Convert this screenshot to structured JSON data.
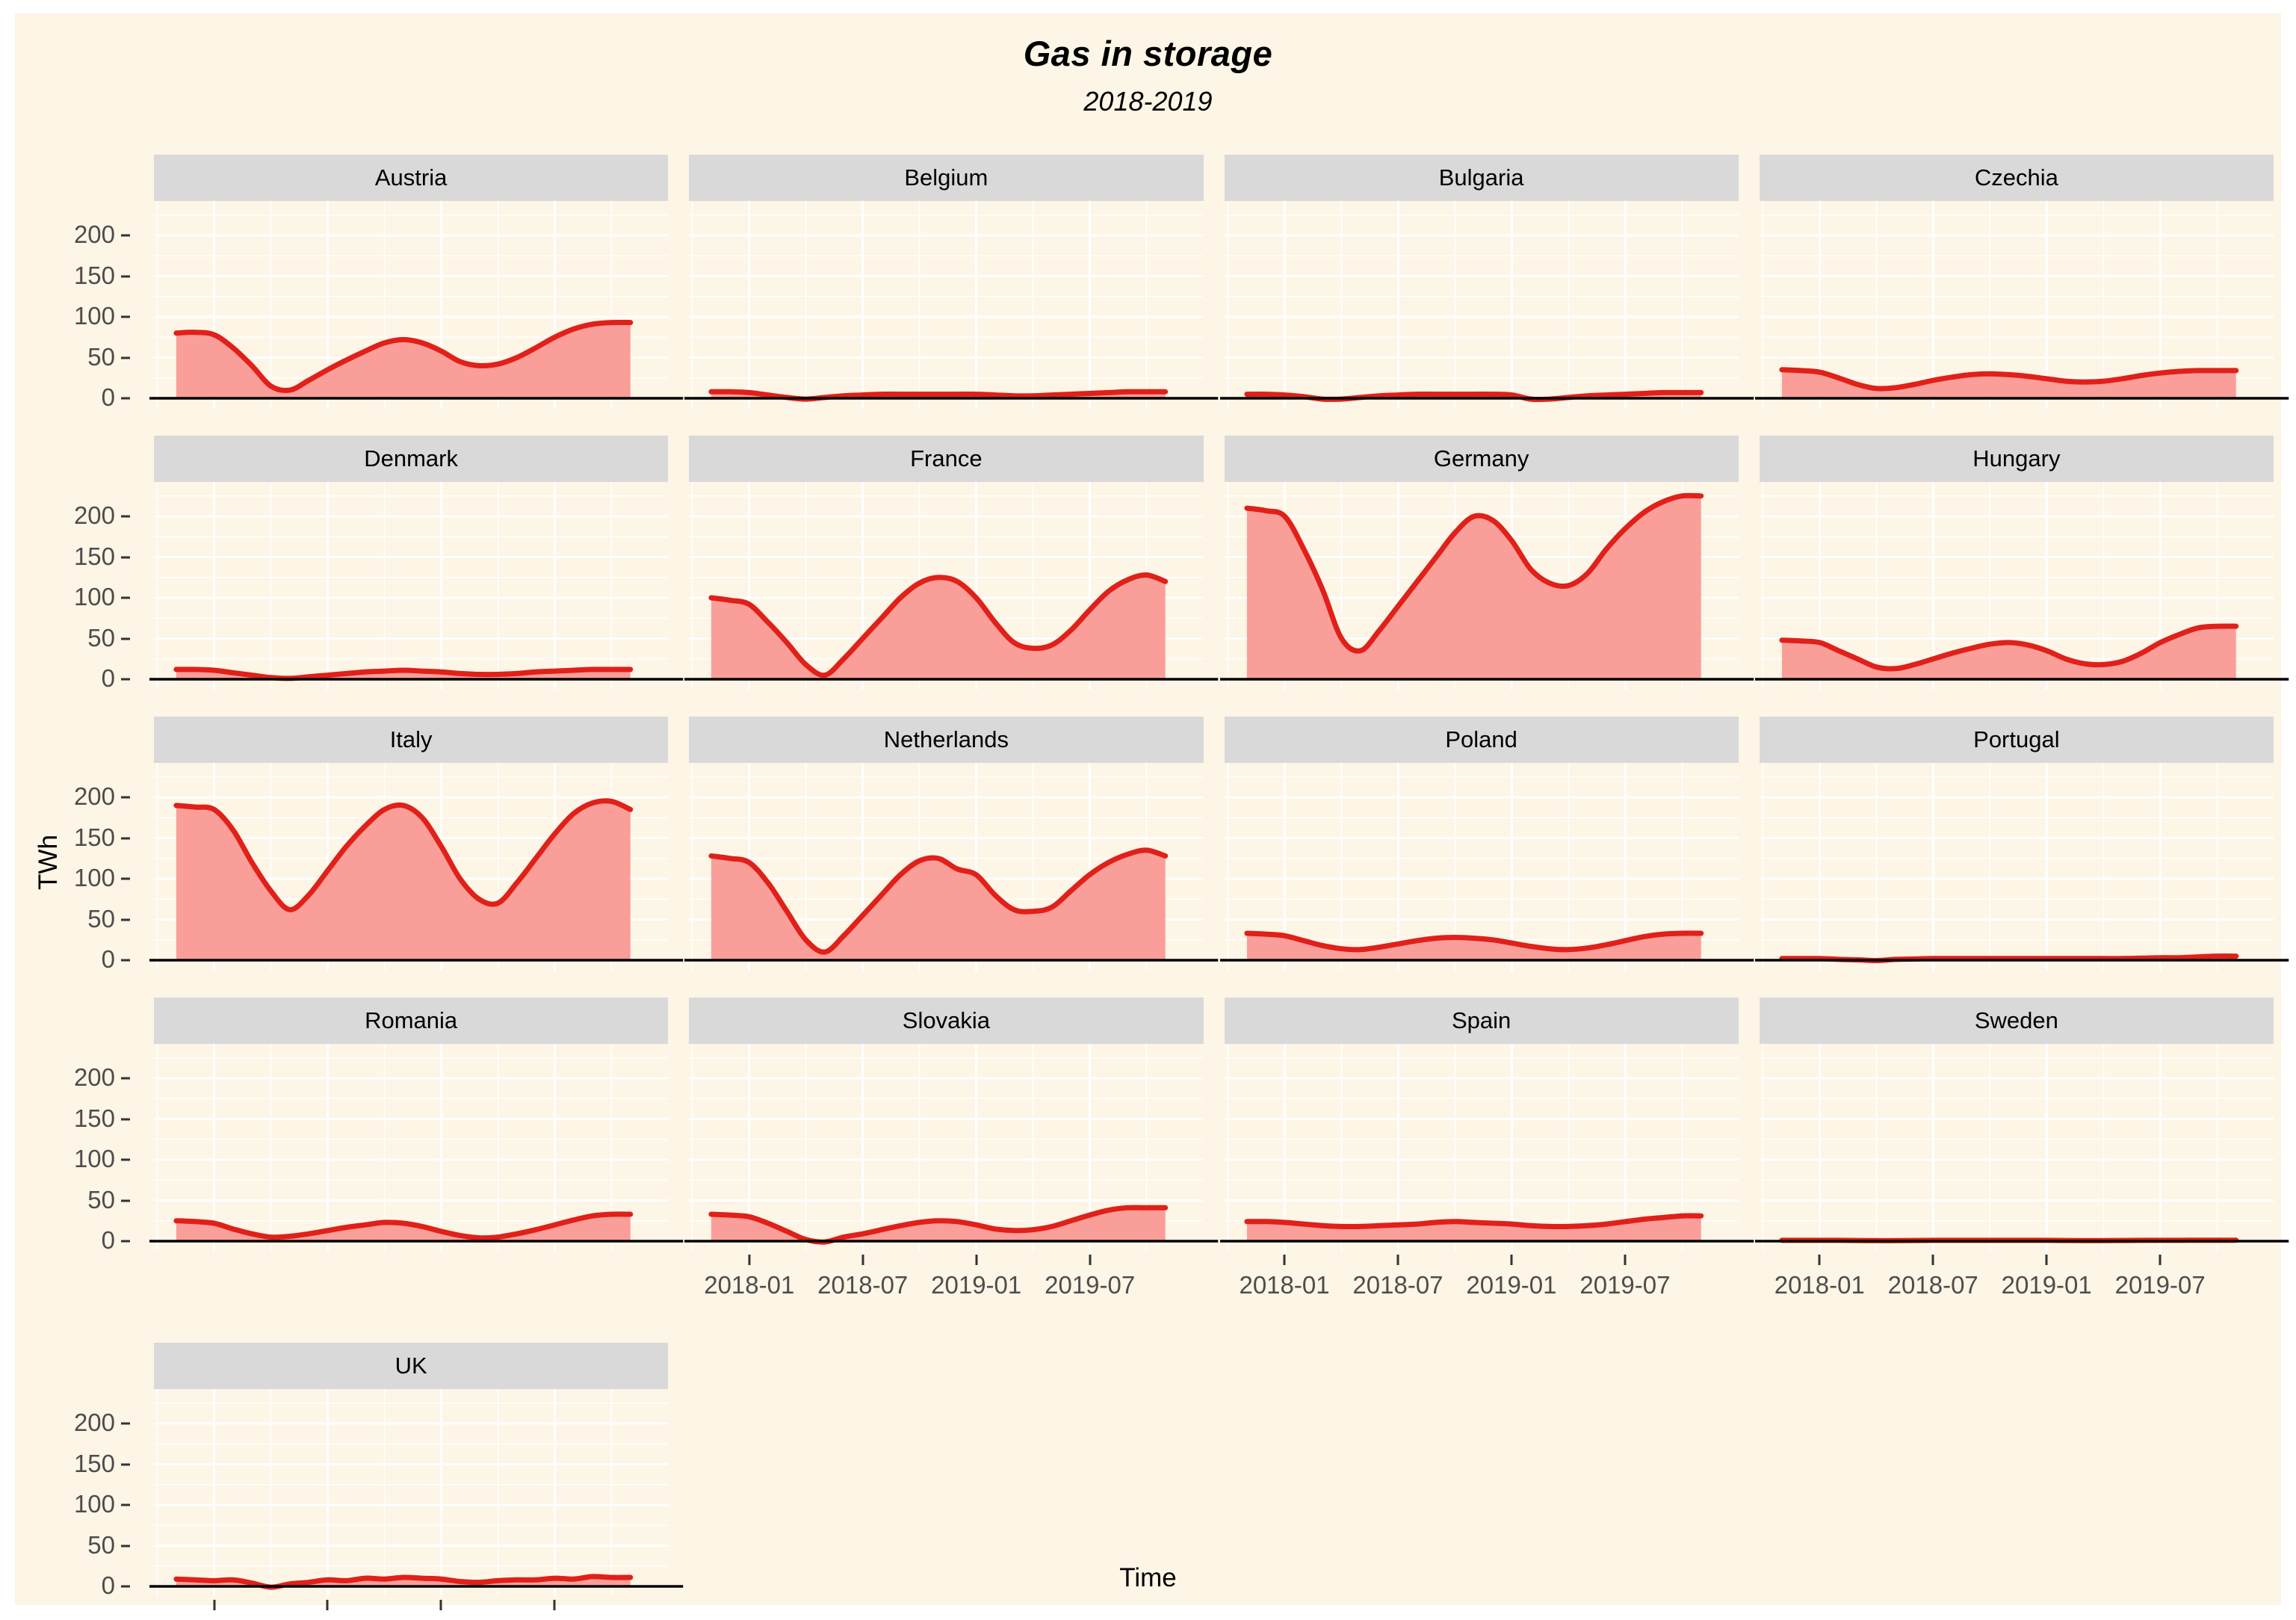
{
  "figure": {
    "title": "Gas in storage",
    "subtitle": "2018-2019",
    "x_axis_label": "Time",
    "y_axis_label": "TWh"
  },
  "colors": {
    "outer_background": "#FFFFFF",
    "plot_background": "#FDF5E6",
    "panel_background": "#FDF5E6",
    "strip_background": "#D9D9D9",
    "strip_text": "#000000",
    "grid": "#FFFFFF",
    "line": "#E02019",
    "area_fill": "#FA9E99",
    "axis_text": "#4D4D4D",
    "axis_line": "#000000",
    "tick_mark": "#333333"
  },
  "layout": {
    "columns": 4,
    "rows": [
      [
        "Austria",
        "Belgium",
        "Bulgaria",
        "Czechia"
      ],
      [
        "Denmark",
        "France",
        "Germany",
        "Hungary"
      ],
      [
        "Italy",
        "Netherlands",
        "Poland",
        "Portugal"
      ],
      [
        "Romania",
        "Slovakia",
        "Spain",
        "Sweden"
      ],
      [
        "UK",
        null,
        null,
        null
      ]
    ],
    "x_axis_under": [
      [
        3,
        1
      ],
      [
        3,
        2
      ],
      [
        3,
        3
      ],
      [
        4,
        0
      ]
    ],
    "grid_on": true,
    "legend": "none"
  },
  "chart_data": {
    "type": "area",
    "title": "Gas in storage",
    "subtitle": "2018-2019",
    "xlabel": "Time",
    "ylabel": "TWh",
    "ylim": [
      0,
      242
    ],
    "y_ticks": [
      0,
      50,
      100,
      150,
      200
    ],
    "y_minor_gridlines": [
      25,
      75,
      125,
      175,
      225
    ],
    "x_tick_labels": [
      "2018-01",
      "2018-07",
      "2019-01",
      "2019-07"
    ],
    "x_tick_month_index": [
      2,
      8,
      14,
      20
    ],
    "x_minor_month_index": [
      -1,
      5,
      11,
      17,
      23
    ],
    "x": [
      "2017-11",
      "2017-12",
      "2018-01",
      "2018-02",
      "2018-03",
      "2018-04",
      "2018-05",
      "2018-06",
      "2018-07",
      "2018-08",
      "2018-09",
      "2018-10",
      "2018-11",
      "2018-12",
      "2019-01",
      "2019-02",
      "2019-03",
      "2019-04",
      "2019-05",
      "2019-06",
      "2019-07",
      "2019-08",
      "2019-09",
      "2019-10",
      "2019-11"
    ],
    "series": [
      {
        "name": "Austria",
        "values": [
          80,
          81,
          78,
          62,
          40,
          15,
          10,
          22,
          35,
          47,
          58,
          68,
          72,
          68,
          58,
          45,
          40,
          42,
          50,
          62,
          75,
          85,
          91,
          93,
          93
        ]
      },
      {
        "name": "Belgium",
        "values": [
          8,
          8,
          7,
          4,
          1,
          -1,
          1,
          3,
          4,
          5,
          5,
          5,
          5,
          5,
          5,
          4,
          3,
          3,
          4,
          5,
          6,
          7,
          8,
          8,
          8
        ]
      },
      {
        "name": "Bulgaria",
        "values": [
          5,
          5,
          4,
          2,
          -1,
          -1,
          1,
          3,
          4,
          5,
          5,
          5,
          5,
          5,
          4,
          -1,
          -1,
          1,
          3,
          4,
          5,
          6,
          7,
          7,
          7
        ]
      },
      {
        "name": "Czechia",
        "values": [
          35,
          34,
          32,
          25,
          17,
          12,
          13,
          17,
          22,
          26,
          29,
          30,
          29,
          27,
          24,
          21,
          20,
          21,
          24,
          28,
          31,
          33,
          34,
          34,
          34
        ]
      },
      {
        "name": "Denmark",
        "values": [
          12,
          12,
          11,
          8,
          5,
          2,
          1,
          3,
          5,
          7,
          9,
          10,
          11,
          10,
          9,
          7,
          6,
          6,
          7,
          9,
          10,
          11,
          12,
          12,
          12
        ]
      },
      {
        "name": "France",
        "values": [
          100,
          97,
          92,
          70,
          45,
          18,
          5,
          25,
          50,
          75,
          100,
          118,
          125,
          120,
          100,
          70,
          45,
          38,
          42,
          60,
          85,
          108,
          122,
          128,
          120
        ]
      },
      {
        "name": "Germany",
        "values": [
          210,
          207,
          200,
          160,
          110,
          50,
          35,
          60,
          90,
          120,
          150,
          180,
          200,
          195,
          170,
          135,
          118,
          115,
          130,
          160,
          185,
          205,
          218,
          225,
          225
        ]
      },
      {
        "name": "Hungary",
        "values": [
          48,
          47,
          45,
          35,
          25,
          15,
          13,
          18,
          25,
          32,
          38,
          43,
          45,
          42,
          35,
          25,
          19,
          18,
          22,
          32,
          45,
          55,
          63,
          65,
          65
        ]
      },
      {
        "name": "Italy",
        "values": [
          190,
          188,
          185,
          160,
          120,
          85,
          62,
          80,
          110,
          140,
          165,
          185,
          190,
          175,
          140,
          100,
          75,
          70,
          95,
          125,
          155,
          180,
          193,
          195,
          185
        ]
      },
      {
        "name": "Netherlands",
        "values": [
          128,
          125,
          120,
          95,
          60,
          25,
          10,
          30,
          55,
          80,
          105,
          122,
          125,
          112,
          105,
          80,
          62,
          60,
          65,
          85,
          105,
          120,
          130,
          135,
          128
        ]
      },
      {
        "name": "Poland",
        "values": [
          33,
          32,
          30,
          24,
          18,
          14,
          13,
          16,
          20,
          24,
          27,
          28,
          27,
          25,
          21,
          17,
          14,
          13,
          15,
          19,
          24,
          29,
          32,
          33,
          33
        ]
      },
      {
        "name": "Portugal",
        "values": [
          2,
          2,
          2,
          1,
          0.5,
          -0.5,
          1,
          1.5,
          2,
          2,
          2,
          2,
          2,
          2,
          2,
          2,
          2,
          2,
          2,
          2.5,
          3,
          3,
          4,
          5,
          5
        ]
      },
      {
        "name": "Romania",
        "values": [
          25,
          24,
          22,
          15,
          9,
          5,
          6,
          9,
          13,
          17,
          20,
          23,
          22,
          18,
          12,
          7,
          4,
          5,
          9,
          14,
          20,
          26,
          31,
          33,
          33
        ]
      },
      {
        "name": "Slovakia",
        "values": [
          33,
          32,
          30,
          22,
          12,
          2,
          -1,
          5,
          9,
          14,
          19,
          23,
          25,
          24,
          20,
          15,
          13,
          14,
          18,
          25,
          32,
          38,
          41,
          41,
          41
        ]
      },
      {
        "name": "Spain",
        "values": [
          24,
          24,
          23,
          21,
          19,
          18,
          18,
          19,
          20,
          21,
          23,
          24,
          23,
          22,
          21,
          19,
          18,
          18,
          19,
          21,
          24,
          27,
          29,
          31,
          31
        ]
      },
      {
        "name": "Sweden",
        "values": [
          1,
          1,
          1,
          1,
          0.8,
          0.6,
          0.6,
          0.8,
          1,
          1,
          1,
          1,
          1,
          1,
          1,
          0.8,
          0.7,
          0.7,
          0.8,
          1,
          1,
          1,
          1.2,
          1.2,
          1.2
        ]
      },
      {
        "name": "UK",
        "values": [
          9,
          8,
          7,
          8,
          4,
          -1,
          3,
          5,
          8,
          7,
          10,
          9,
          11,
          10,
          9,
          6,
          5,
          7,
          8,
          8,
          10,
          9,
          12,
          11,
          11
        ]
      }
    ]
  }
}
